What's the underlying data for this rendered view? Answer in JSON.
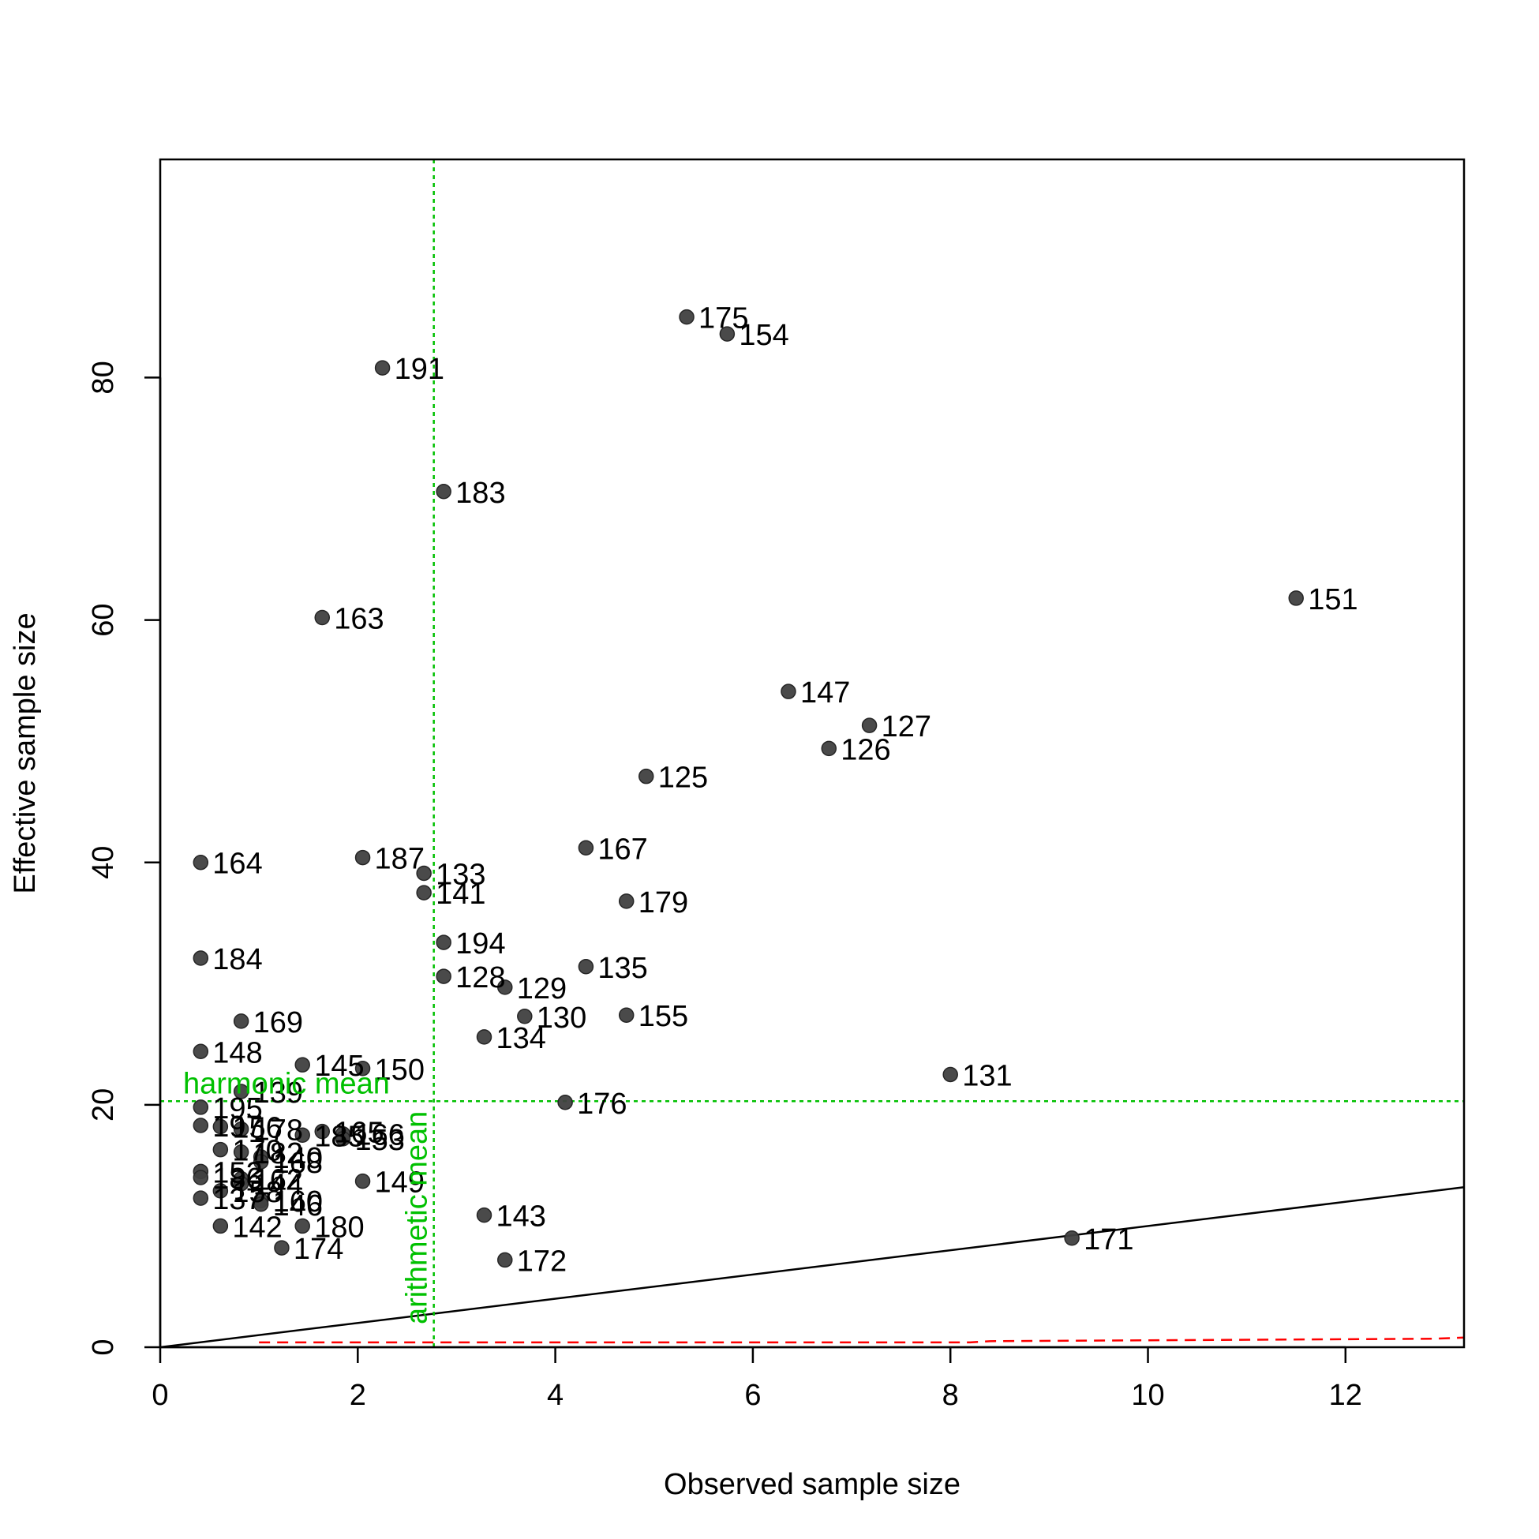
{
  "chart_data": {
    "type": "scatter",
    "xlabel": "Observed sample size",
    "ylabel": "Effective sample size",
    "xlim": [
      0,
      13.2
    ],
    "ylim": [
      0,
      98
    ],
    "xticks": [
      0,
      2,
      4,
      6,
      8,
      10,
      12
    ],
    "yticks": [
      0,
      20,
      40,
      60,
      80
    ],
    "grid": false,
    "point_color": "#404040",
    "points": [
      {
        "label": "175",
        "x": 5.33,
        "y": 85.0
      },
      {
        "label": "154",
        "x": 5.74,
        "y": 83.6
      },
      {
        "label": "191",
        "x": 2.25,
        "y": 80.8
      },
      {
        "label": "183",
        "x": 2.87,
        "y": 70.6
      },
      {
        "label": "151",
        "x": 11.5,
        "y": 61.8
      },
      {
        "label": "163",
        "x": 1.64,
        "y": 60.2
      },
      {
        "label": "147",
        "x": 6.36,
        "y": 54.1
      },
      {
        "label": "127",
        "x": 7.18,
        "y": 51.3
      },
      {
        "label": "126",
        "x": 6.77,
        "y": 49.4
      },
      {
        "label": "125",
        "x": 4.92,
        "y": 47.1
      },
      {
        "label": "167",
        "x": 4.31,
        "y": 41.2
      },
      {
        "label": "187",
        "x": 2.05,
        "y": 40.4
      },
      {
        "label": "164",
        "x": 0.41,
        "y": 40.0
      },
      {
        "label": "133",
        "x": 2.67,
        "y": 39.1
      },
      {
        "label": "141",
        "x": 2.67,
        "y": 37.5
      },
      {
        "label": "179",
        "x": 4.72,
        "y": 36.8
      },
      {
        "label": "194",
        "x": 2.87,
        "y": 33.4
      },
      {
        "label": "184",
        "x": 0.41,
        "y": 32.1
      },
      {
        "label": "135",
        "x": 4.31,
        "y": 31.4
      },
      {
        "label": "128",
        "x": 2.87,
        "y": 30.6
      },
      {
        "label": "129",
        "x": 3.49,
        "y": 29.7
      },
      {
        "label": "130",
        "x": 3.69,
        "y": 27.3
      },
      {
        "label": "155",
        "x": 4.72,
        "y": 27.4
      },
      {
        "label": "169",
        "x": 0.82,
        "y": 26.9
      },
      {
        "label": "134",
        "x": 3.28,
        "y": 25.6
      },
      {
        "label": "148",
        "x": 0.41,
        "y": 24.4
      },
      {
        "label": "145",
        "x": 1.44,
        "y": 23.3
      },
      {
        "label": "150",
        "x": 2.05,
        "y": 23.0
      },
      {
        "label": "131",
        "x": 8.0,
        "y": 22.5
      },
      {
        "label": "139",
        "x": 0.82,
        "y": 21.1
      },
      {
        "label": "176",
        "x": 4.1,
        "y": 20.2
      },
      {
        "label": "195",
        "x": 0.41,
        "y": 19.8
      },
      {
        "label": "156",
        "x": 0.61,
        "y": 18.2
      },
      {
        "label": "165",
        "x": 1.64,
        "y": 17.8
      },
      {
        "label": "166",
        "x": 1.85,
        "y": 17.6
      },
      {
        "label": "153",
        "x": 1.85,
        "y": 17.2
      },
      {
        "label": "178",
        "x": 0.82,
        "y": 18.0
      },
      {
        "label": "185",
        "x": 1.44,
        "y": 17.5
      },
      {
        "label": "197",
        "x": 0.41,
        "y": 18.3
      },
      {
        "label": "170",
        "x": 0.61,
        "y": 16.3
      },
      {
        "label": "182",
        "x": 0.82,
        "y": 16.1
      },
      {
        "label": "140",
        "x": 1.02,
        "y": 15.7
      },
      {
        "label": "168",
        "x": 1.02,
        "y": 15.3
      },
      {
        "label": "152",
        "x": 0.41,
        "y": 14.5
      },
      {
        "label": "162",
        "x": 0.82,
        "y": 13.9
      },
      {
        "label": "149",
        "x": 2.05,
        "y": 13.7
      },
      {
        "label": "186",
        "x": 0.41,
        "y": 14.0
      },
      {
        "label": "144",
        "x": 0.82,
        "y": 13.5
      },
      {
        "label": "158",
        "x": 0.61,
        "y": 12.9
      },
      {
        "label": "137",
        "x": 0.41,
        "y": 12.3
      },
      {
        "label": "160",
        "x": 1.02,
        "y": 12.1
      },
      {
        "label": "146",
        "x": 1.02,
        "y": 11.8
      },
      {
        "label": "143",
        "x": 3.28,
        "y": 10.9
      },
      {
        "label": "142",
        "x": 0.61,
        "y": 10.0
      },
      {
        "label": "180",
        "x": 1.44,
        "y": 10.0
      },
      {
        "label": "171",
        "x": 9.23,
        "y": 9.0
      },
      {
        "label": "174",
        "x": 1.23,
        "y": 8.2
      },
      {
        "label": "172",
        "x": 3.49,
        "y": 7.2
      }
    ],
    "reference_lines": {
      "identity": {
        "color": "#000000",
        "from": [
          0,
          0
        ],
        "to": [
          13.2,
          13.2
        ]
      },
      "lower_bound": {
        "color": "#ff0000",
        "points": [
          [
            1.0,
            0.4
          ],
          [
            8.2,
            0.4
          ],
          [
            8.4,
            0.5
          ],
          [
            12.9,
            0.7
          ],
          [
            13.2,
            0.8
          ]
        ]
      },
      "harmonic_mean": {
        "label": "harmonic mean",
        "value": 20.3,
        "color": "#00c000"
      },
      "arithmetic_mean": {
        "label": "arithmetic mean",
        "value": 2.77,
        "color": "#00c000"
      }
    }
  }
}
